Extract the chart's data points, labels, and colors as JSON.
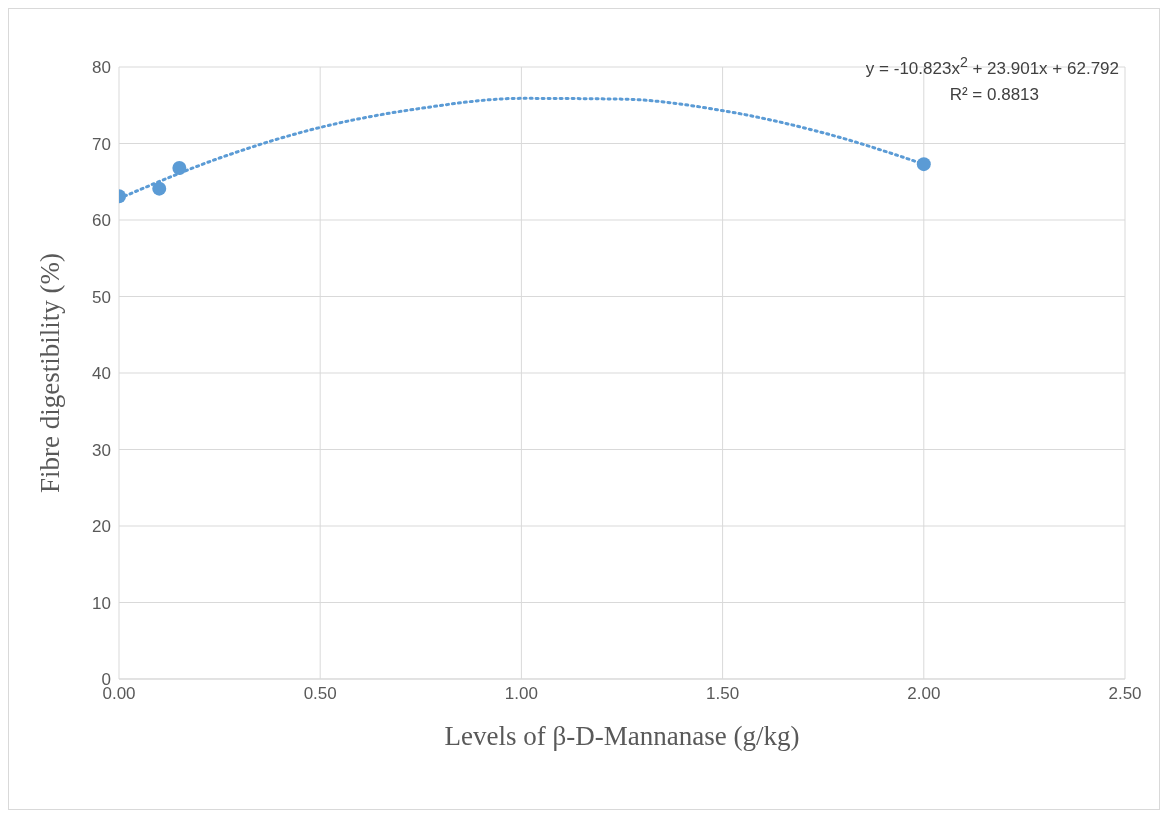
{
  "chart_data": {
    "type": "scatter",
    "xlabel": "Levels  of β-D-Mannanase (g/kg)",
    "ylabel": "Fibre digestibility (%)",
    "x": [
      0,
      0.1,
      0.15,
      2.0
    ],
    "series": [
      {
        "color": "#5b9bd5",
        "marker": "circle",
        "values": [
          63.1,
          64.1,
          66.8,
          67.3
        ]
      },
      {
        "type": "line",
        "color": "#5b9bd5",
        "line_style": "dotted",
        "marker": "none",
        "x": [
          0,
          0.25,
          0.5,
          0.75,
          1.0,
          1.25,
          1.5,
          1.75,
          2.0
        ],
        "values": [
          62.8,
          68.1,
          72.1,
          74.6,
          75.9,
          75.8,
          74.3,
          71.4,
          67.3
        ]
      }
    ],
    "xlim": [
      0,
      2.5
    ],
    "xticks": [
      {
        "value": 0,
        "label": "0.00"
      },
      {
        "value": 0.5,
        "label": "0.50"
      },
      {
        "value": 1,
        "label": "1.00"
      },
      {
        "value": 1.5,
        "label": "1.50"
      },
      {
        "value": 2,
        "label": "2.00"
      },
      {
        "value": 2.5,
        "label": "2.50"
      }
    ],
    "ylim": [
      0,
      80
    ],
    "yticks": [
      0,
      10,
      20,
      30,
      40,
      50,
      60,
      70,
      80
    ],
    "grid": true,
    "annotations": [
      {
        "text": "y = -10.823x$^{2}$ + 23.901x + 62.792"
      },
      {
        "text": "R² = 0.8813"
      }
    ]
  }
}
